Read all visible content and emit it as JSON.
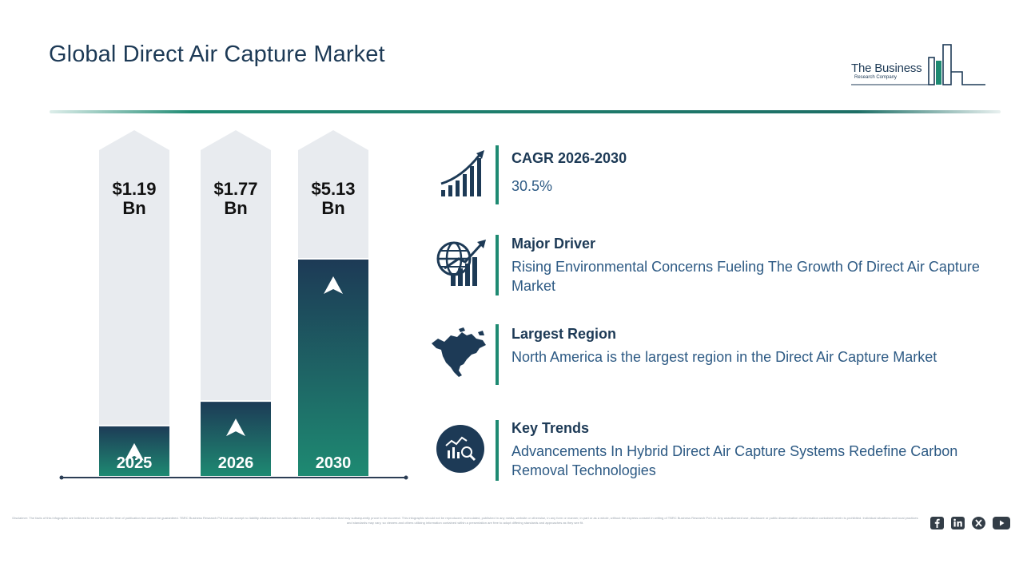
{
  "header": {
    "title": "Global Direct Air Capture Market"
  },
  "logo": {
    "line1": "The Business",
    "line2": "Research Company",
    "accent_color": "#1e8a72",
    "dark_color": "#1d3a56"
  },
  "chart_data": {
    "type": "bar",
    "categories": [
      "2025",
      "2026",
      "2030"
    ],
    "values": [
      1.19,
      1.77,
      5.13
    ],
    "value_labels": [
      "$1.19",
      "$1.77",
      "$5.13"
    ],
    "unit_label": "Bn",
    "colors": {
      "bar_top": "#1d3a56",
      "bar_bottom": "#1e8a72",
      "track": "#e8ebef"
    }
  },
  "stats": [
    {
      "icon": "growth-chart-icon",
      "heading": "CAGR 2026-2030",
      "text": "30.5%"
    },
    {
      "icon": "globe-growth-icon",
      "heading": "Major Driver",
      "text": "Rising Environmental Concerns Fueling The Growth Of Direct Air Capture Market"
    },
    {
      "icon": "north-america-map-icon",
      "heading": "Largest Region",
      "text": "North America is the largest region in the Direct Air Capture Market"
    },
    {
      "icon": "trends-magnifier-icon",
      "heading": "Key Trends",
      "text": "Advancements In Hybrid Direct Air Capture Systems Redefine Carbon Removal Technologies"
    }
  ],
  "footer": {
    "disclaimer": "Disclaimer: The facts of this infographic are believed to be correct at the time of publication but cannot be guaranteed. TBRC Business Research Pvt Ltd can accept no liability whatsoever for actions taken based on any information that may subsequently prove to be incorrect. This infographic should not be reproduced, recirculated, published in any media, website or otherwise, in any form or manner, in part or as a whole, without the express consent in writing of TBRC Business Research Pvt Ltd. Any unauthorized use, disclosure or public dissemination of information contained herein is prohibited. Individual situations and local practices and standards may vary, so viewers and others utilizing information contained within a presentation are free to adopt differing standards and approaches as they see fit.",
    "social": [
      "facebook-icon",
      "linkedin-icon",
      "x-icon",
      "youtube-icon"
    ]
  }
}
